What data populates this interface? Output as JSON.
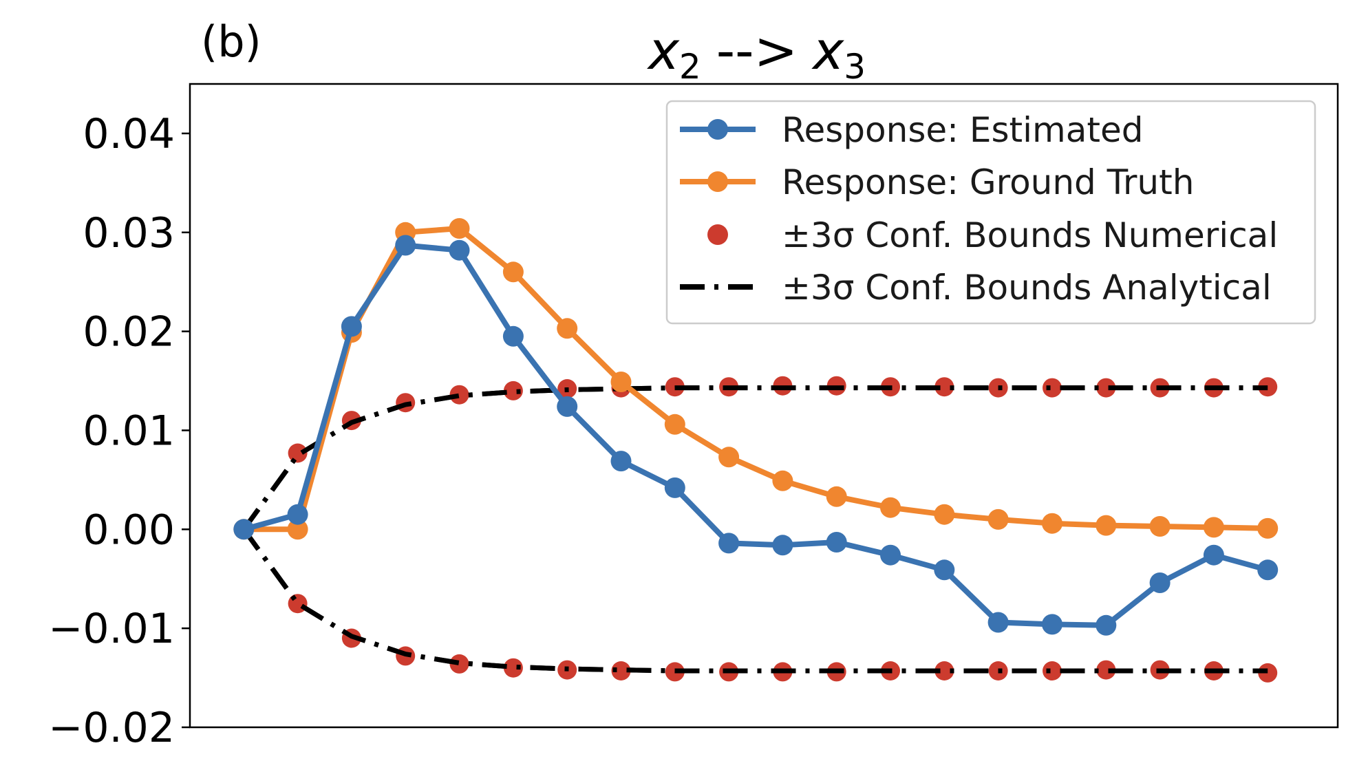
{
  "panel_label": "(b)",
  "title": {
    "var_a": "x",
    "sub_a": "2",
    "arrow": "-->",
    "var_b": "x",
    "sub_b": "3"
  },
  "colors": {
    "estimated": "#3a73b1",
    "ground_truth": "#f0862f",
    "numerical_bounds": "#cc3b2e",
    "analytical_bounds": "#000000"
  },
  "chart_data": {
    "type": "line",
    "xlabel": "",
    "ylabel": "",
    "x": [
      0,
      1,
      2,
      3,
      4,
      5,
      6,
      7,
      8,
      9,
      10,
      11,
      12,
      13,
      14,
      15,
      16,
      17,
      18,
      19
    ],
    "xlim": [
      -1,
      20.3
    ],
    "ylim": [
      -0.02,
      0.045
    ],
    "yticks": [
      -0.02,
      -0.01,
      0.0,
      0.01,
      0.02,
      0.03,
      0.04
    ],
    "ytick_labels": [
      "−0.02",
      "−0.01",
      "0.00",
      "0.01",
      "0.02",
      "0.03",
      "0.04"
    ],
    "grid": false,
    "legend_position": "top-right",
    "series": [
      {
        "name": "Response: Estimated",
        "style": "line-marker",
        "values": [
          0.0,
          0.0015,
          0.0205,
          0.0287,
          0.0282,
          0.0195,
          0.0124,
          0.0069,
          0.0042,
          -0.0014,
          -0.0016,
          -0.0013,
          -0.0026,
          -0.0041,
          -0.0094,
          -0.0096,
          -0.0097,
          -0.0054,
          -0.0026,
          -0.0041
        ]
      },
      {
        "name": "Response: Ground Truth",
        "style": "line-marker",
        "values": [
          0.0,
          0.0,
          0.0199,
          0.03,
          0.0304,
          0.026,
          0.0203,
          0.0149,
          0.0106,
          0.0073,
          0.0049,
          0.0033,
          0.0022,
          0.0015,
          0.001,
          0.0006,
          0.0004,
          0.0003,
          0.0002,
          0.0001
        ]
      },
      {
        "name": "±3σ Conf. Bounds Numerical",
        "style": "markers",
        "upper": [
          0.0,
          0.0077,
          0.011,
          0.0128,
          0.0136,
          0.014,
          0.0142,
          0.0143,
          0.0144,
          0.0144,
          0.0145,
          0.0145,
          0.0144,
          0.0144,
          0.0143,
          0.0143,
          0.0143,
          0.0143,
          0.0143,
          0.0144
        ],
        "lower": [
          0.0,
          -0.0075,
          -0.011,
          -0.0128,
          -0.0136,
          -0.014,
          -0.0142,
          -0.0143,
          -0.0144,
          -0.0144,
          -0.0144,
          -0.0144,
          -0.0143,
          -0.0143,
          -0.0143,
          -0.0143,
          -0.0142,
          -0.0142,
          -0.0143,
          -0.0145
        ]
      },
      {
        "name": "±3σ Conf. Bounds Analytical",
        "style": "dashdot",
        "upper": [
          0.0,
          0.0075,
          0.0108,
          0.0126,
          0.0135,
          0.0139,
          0.0141,
          0.0142,
          0.0143,
          0.0143,
          0.0143,
          0.0143,
          0.0143,
          0.0143,
          0.0143,
          0.0143,
          0.0143,
          0.0143,
          0.0143,
          0.0143
        ],
        "lower": [
          0.0,
          -0.0075,
          -0.0108,
          -0.0126,
          -0.0135,
          -0.0139,
          -0.0141,
          -0.0142,
          -0.0143,
          -0.0143,
          -0.0143,
          -0.0143,
          -0.0143,
          -0.0143,
          -0.0143,
          -0.0143,
          -0.0143,
          -0.0143,
          -0.0143,
          -0.0143
        ]
      }
    ]
  }
}
